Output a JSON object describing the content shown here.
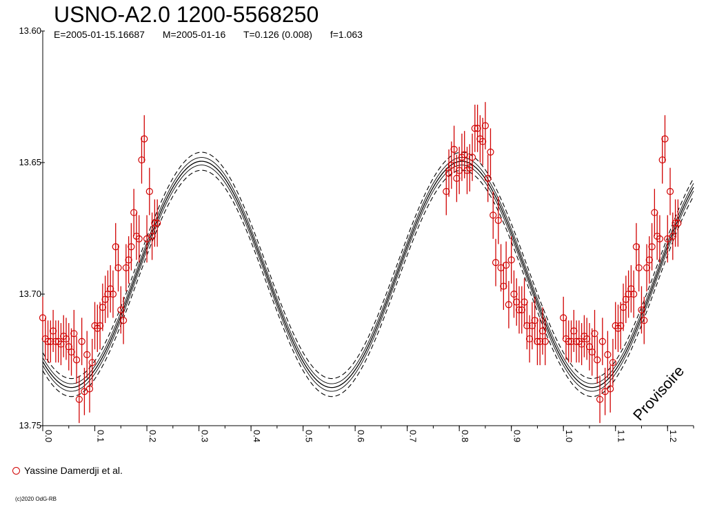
{
  "header": {
    "title": "USNO-A2.0 1200-5568250",
    "epoch": "E=2005-01-15.16687",
    "mid": "M=2005-01-16",
    "period": "T=0.126 (0.008)",
    "fraction": "f=1.063"
  },
  "legend": {
    "label": "Yassine Damerdji et al.",
    "color": "#d00000"
  },
  "watermark": "Provisoire",
  "copyright": "(c)2020 OdG-RB",
  "chart_data": {
    "type": "scatter",
    "title": "USNO-A2.0 1200-5568250",
    "xlabel": "",
    "ylabel": "",
    "xlim": [
      0,
      1.25
    ],
    "ylim": [
      13.6,
      13.75
    ],
    "y_inverted": true,
    "x_ticks": [
      "0.0",
      "0.1",
      "0.2",
      "0.3",
      "0.4",
      "0.5",
      "0.6",
      "0.7",
      "0.8",
      "0.9",
      "1.0",
      "1.1",
      "1.2"
    ],
    "y_ticks": [
      "13.60",
      "13.65",
      "13.70",
      "13.75"
    ],
    "model": {
      "mean": 13.6925,
      "amplitude": 0.043,
      "cycles_per_phase": 2,
      "peak_phase": 0.305,
      "band": 0.0018
    },
    "series": [
      {
        "name": "Yassine Damerdji et al.",
        "color": "#d00000",
        "points": [
          {
            "x": 0.0,
            "y": 13.709,
            "e": 0.008
          },
          {
            "x": 0.005,
            "y": 13.717,
            "e": 0.008
          },
          {
            "x": 0.01,
            "y": 13.718,
            "e": 0.008
          },
          {
            "x": 0.015,
            "y": 13.718,
            "e": 0.008
          },
          {
            "x": 0.02,
            "y": 13.714,
            "e": 0.008
          },
          {
            "x": 0.025,
            "y": 13.718,
            "e": 0.008
          },
          {
            "x": 0.03,
            "y": 13.718,
            "e": 0.008
          },
          {
            "x": 0.035,
            "y": 13.719,
            "e": 0.008
          },
          {
            "x": 0.04,
            "y": 13.716,
            "e": 0.008
          },
          {
            "x": 0.045,
            "y": 13.717,
            "e": 0.008
          },
          {
            "x": 0.05,
            "y": 13.72,
            "e": 0.009
          },
          {
            "x": 0.055,
            "y": 13.722,
            "e": 0.009
          },
          {
            "x": 0.06,
            "y": 13.715,
            "e": 0.009
          },
          {
            "x": 0.065,
            "y": 13.725,
            "e": 0.009
          },
          {
            "x": 0.07,
            "y": 13.74,
            "e": 0.009
          },
          {
            "x": 0.075,
            "y": 13.718,
            "e": 0.009
          },
          {
            "x": 0.08,
            "y": 13.737,
            "e": 0.009
          },
          {
            "x": 0.085,
            "y": 13.723,
            "e": 0.009
          },
          {
            "x": 0.09,
            "y": 13.736,
            "e": 0.009
          },
          {
            "x": 0.095,
            "y": 13.726,
            "e": 0.009
          },
          {
            "x": 0.1,
            "y": 13.712,
            "e": 0.009
          },
          {
            "x": 0.105,
            "y": 13.713,
            "e": 0.009
          },
          {
            "x": 0.11,
            "y": 13.712,
            "e": 0.009
          },
          {
            "x": 0.115,
            "y": 13.705,
            "e": 0.009
          },
          {
            "x": 0.12,
            "y": 13.702,
            "e": 0.009
          },
          {
            "x": 0.125,
            "y": 13.7,
            "e": 0.009
          },
          {
            "x": 0.13,
            "y": 13.698,
            "e": 0.009
          },
          {
            "x": 0.135,
            "y": 13.7,
            "e": 0.009
          },
          {
            "x": 0.14,
            "y": 13.682,
            "e": 0.009
          },
          {
            "x": 0.145,
            "y": 13.69,
            "e": 0.009
          },
          {
            "x": 0.15,
            "y": 13.706,
            "e": 0.009
          },
          {
            "x": 0.155,
            "y": 13.71,
            "e": 0.009
          },
          {
            "x": 0.16,
            "y": 13.69,
            "e": 0.009
          },
          {
            "x": 0.165,
            "y": 13.687,
            "e": 0.009
          },
          {
            "x": 0.17,
            "y": 13.682,
            "e": 0.009
          },
          {
            "x": 0.175,
            "y": 13.669,
            "e": 0.009
          },
          {
            "x": 0.18,
            "y": 13.678,
            "e": 0.009
          },
          {
            "x": 0.185,
            "y": 13.679,
            "e": 0.009
          },
          {
            "x": 0.19,
            "y": 13.649,
            "e": 0.009
          },
          {
            "x": 0.195,
            "y": 13.641,
            "e": 0.009
          },
          {
            "x": 0.2,
            "y": 13.679,
            "e": 0.009
          },
          {
            "x": 0.205,
            "y": 13.661,
            "e": 0.009
          },
          {
            "x": 0.21,
            "y": 13.678,
            "e": 0.009
          },
          {
            "x": 0.215,
            "y": 13.673,
            "e": 0.009
          },
          {
            "x": 0.22,
            "y": 13.673,
            "e": 0.009
          },
          {
            "x": 0.775,
            "y": 13.661,
            "e": 0.009
          },
          {
            "x": 0.78,
            "y": 13.654,
            "e": 0.009
          },
          {
            "x": 0.785,
            "y": 13.651,
            "e": 0.009
          },
          {
            "x": 0.79,
            "y": 13.645,
            "e": 0.009
          },
          {
            "x": 0.795,
            "y": 13.656,
            "e": 0.009
          },
          {
            "x": 0.8,
            "y": 13.653,
            "e": 0.009
          },
          {
            "x": 0.805,
            "y": 13.648,
            "e": 0.009
          },
          {
            "x": 0.81,
            "y": 13.647,
            "e": 0.009
          },
          {
            "x": 0.815,
            "y": 13.653,
            "e": 0.009
          },
          {
            "x": 0.82,
            "y": 13.652,
            "e": 0.009
          },
          {
            "x": 0.825,
            "y": 13.648,
            "e": 0.009
          },
          {
            "x": 0.83,
            "y": 13.637,
            "e": 0.009
          },
          {
            "x": 0.835,
            "y": 13.637,
            "e": 0.009
          },
          {
            "x": 0.84,
            "y": 13.641,
            "e": 0.009
          },
          {
            "x": 0.845,
            "y": 13.642,
            "e": 0.009
          },
          {
            "x": 0.85,
            "y": 13.636,
            "e": 0.009
          },
          {
            "x": 0.855,
            "y": 13.656,
            "e": 0.009
          },
          {
            "x": 0.86,
            "y": 13.646,
            "e": 0.009
          },
          {
            "x": 0.865,
            "y": 13.67,
            "e": 0.009
          },
          {
            "x": 0.87,
            "y": 13.688,
            "e": 0.009
          },
          {
            "x": 0.875,
            "y": 13.672,
            "e": 0.009
          },
          {
            "x": 0.88,
            "y": 13.69,
            "e": 0.009
          },
          {
            "x": 0.885,
            "y": 13.697,
            "e": 0.009
          },
          {
            "x": 0.89,
            "y": 13.689,
            "e": 0.009
          },
          {
            "x": 0.895,
            "y": 13.704,
            "e": 0.009
          },
          {
            "x": 0.9,
            "y": 13.687,
            "e": 0.009
          },
          {
            "x": 0.905,
            "y": 13.7,
            "e": 0.009
          },
          {
            "x": 0.91,
            "y": 13.703,
            "e": 0.009
          },
          {
            "x": 0.915,
            "y": 13.706,
            "e": 0.009
          },
          {
            "x": 0.92,
            "y": 13.706,
            "e": 0.009
          },
          {
            "x": 0.925,
            "y": 13.703,
            "e": 0.009
          },
          {
            "x": 0.93,
            "y": 13.712,
            "e": 0.009
          },
          {
            "x": 0.935,
            "y": 13.717,
            "e": 0.009
          },
          {
            "x": 0.94,
            "y": 13.712,
            "e": 0.009
          },
          {
            "x": 0.945,
            "y": 13.71,
            "e": 0.009
          },
          {
            "x": 0.95,
            "y": 13.718,
            "e": 0.009
          },
          {
            "x": 0.955,
            "y": 13.718,
            "e": 0.009
          },
          {
            "x": 0.96,
            "y": 13.714,
            "e": 0.009
          },
          {
            "x": 0.965,
            "y": 13.718,
            "e": 0.009
          }
        ]
      }
    ]
  }
}
